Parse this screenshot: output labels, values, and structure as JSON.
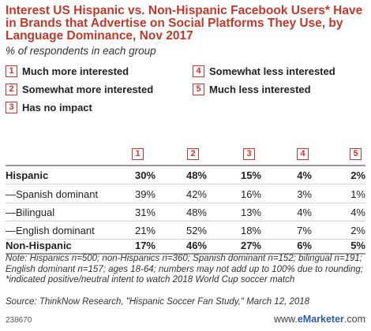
{
  "title": "Interest US Hispanic vs. Non-Hispanic Facebook Users* Have in Brands that Advertise on Social Platforms They Use, by Language Dominance, Nov 2017",
  "subtitle": "% of respondents in each group",
  "legend": [
    {
      "num": "1",
      "label": "Much more interested"
    },
    {
      "num": "2",
      "label": "Somewhat more interested"
    },
    {
      "num": "3",
      "label": "Has no impact"
    },
    {
      "num": "4",
      "label": "Somewhat less interested"
    },
    {
      "num": "5",
      "label": "Much less interested"
    }
  ],
  "chart_data": {
    "type": "table",
    "columns": [
      "1",
      "2",
      "3",
      "4",
      "5"
    ],
    "rows": [
      {
        "label": "Hispanic",
        "bold": true,
        "values": [
          "30%",
          "48%",
          "15%",
          "4%",
          "2%"
        ]
      },
      {
        "label": "—Spanish dominant",
        "bold": false,
        "values": [
          "39%",
          "42%",
          "16%",
          "3%",
          "1%"
        ]
      },
      {
        "label": "—Bilingual",
        "bold": false,
        "values": [
          "31%",
          "48%",
          "13%",
          "4%",
          "4%"
        ]
      },
      {
        "label": "—English dominant",
        "bold": false,
        "values": [
          "21%",
          "52%",
          "18%",
          "7%",
          "2%"
        ]
      },
      {
        "label": "Non-Hispanic",
        "bold": true,
        "values": [
          "17%",
          "46%",
          "27%",
          "6%",
          "5%"
        ]
      }
    ]
  },
  "note": "Note: Hispanics n=500; non-Hispanics n=360; Spanish dominant n=152; bilingual n=191; English dominant n=157; ages 18-64; numbers may not add up to 100% due to rounding; *indicated positive/neutral intent to watch 2018 World Cup soccer match",
  "source": "Source: ThinkNow Research, \"Hispanic Soccer Fan Study,\" March 12, 2018",
  "footer": {
    "id": "238670",
    "brand_prefix": "www.",
    "brand_name": "eMarketer",
    "brand_suffix": ".com"
  }
}
